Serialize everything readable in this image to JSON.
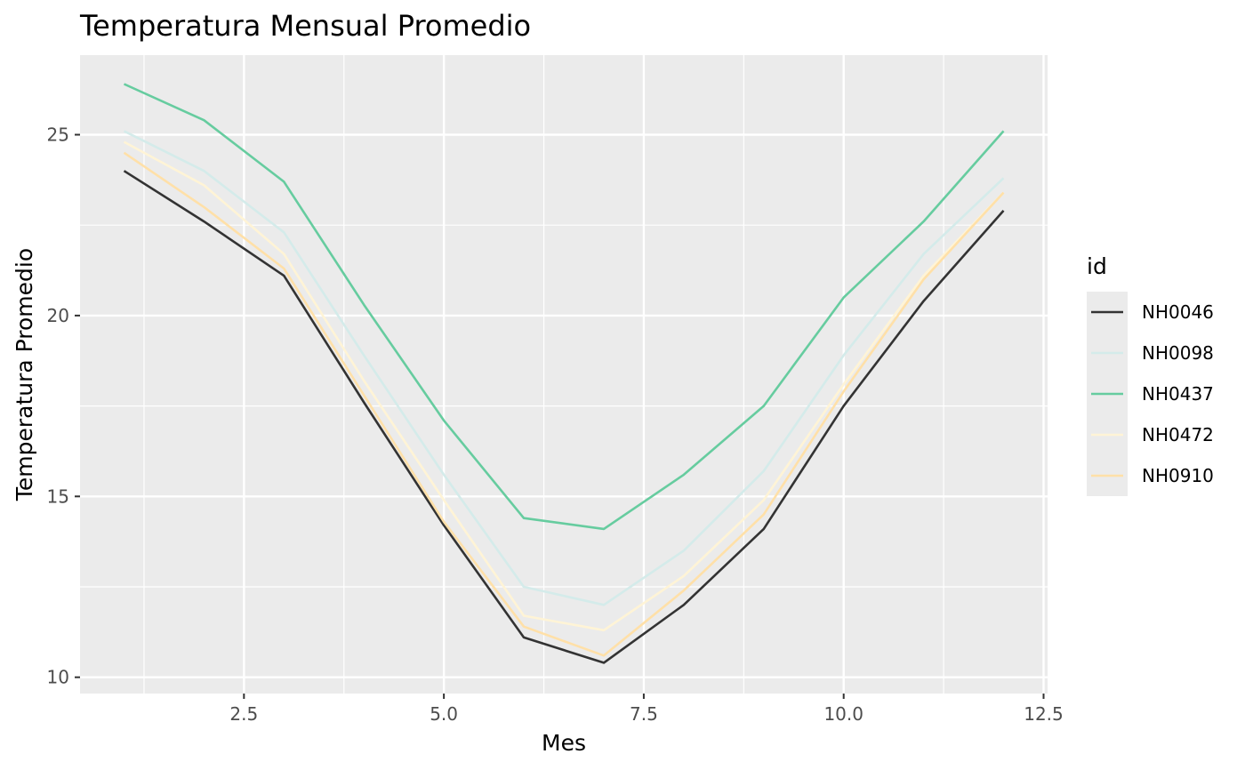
{
  "chart_data": {
    "type": "line",
    "title": "Temperatura Mensual Promedio",
    "xlabel": "Mes",
    "ylabel": "Temperatura Promedio",
    "xlim": [
      0.45,
      12.55
    ],
    "ylim": [
      9.55,
      27.2
    ],
    "x_ticks": [
      2.5,
      5.0,
      7.5,
      10.0,
      12.5
    ],
    "x_tick_labels": [
      "2.5",
      "5.0",
      "7.5",
      "10.0",
      "12.5"
    ],
    "y_ticks": [
      10,
      15,
      20,
      25
    ],
    "y_tick_labels": [
      "10",
      "15",
      "20",
      "25"
    ],
    "grid": true,
    "legend": {
      "title": "id",
      "position": "right"
    },
    "x": [
      1,
      2,
      3,
      4,
      5,
      6,
      7,
      8,
      9,
      10,
      11,
      12
    ],
    "series": [
      {
        "name": "NH0046",
        "color": "#333333",
        "values": [
          24.0,
          22.6,
          21.1,
          17.6,
          14.2,
          11.1,
          10.4,
          12.0,
          14.1,
          17.5,
          20.4,
          22.9
        ]
      },
      {
        "name": "NH0098",
        "color": "#d4ebea",
        "values": [
          25.1,
          24.0,
          22.3,
          18.9,
          15.6,
          12.5,
          12.0,
          13.5,
          15.7,
          18.9,
          21.7,
          23.8
        ]
      },
      {
        "name": "NH0437",
        "color": "#66cc9f",
        "values": [
          26.4,
          25.4,
          23.7,
          20.3,
          17.1,
          14.4,
          14.1,
          15.6,
          17.5,
          20.5,
          22.6,
          25.1
        ]
      },
      {
        "name": "NH0472",
        "color": "#fff4d6",
        "values": [
          24.8,
          23.6,
          21.7,
          18.2,
          14.9,
          11.7,
          11.3,
          12.8,
          14.9,
          18.1,
          21.1,
          23.4
        ]
      },
      {
        "name": "NH0910",
        "color": "#ffe0a8",
        "values": [
          24.5,
          23.0,
          21.3,
          17.8,
          14.3,
          11.4,
          10.6,
          12.4,
          14.5,
          17.9,
          21.0,
          23.4
        ]
      }
    ]
  }
}
